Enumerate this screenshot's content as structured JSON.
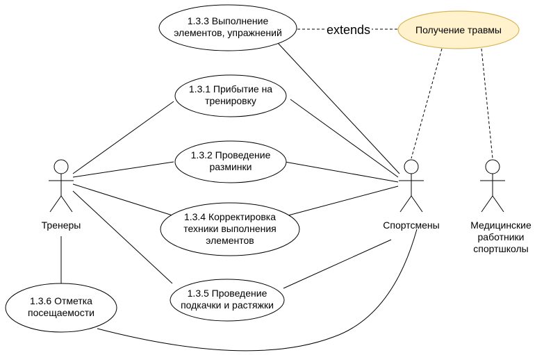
{
  "actors": {
    "trainers": {
      "label": "Тренеры"
    },
    "athletes": {
      "label": "Спортсмены"
    },
    "medics": {
      "label": "Медицинские\nработники\nспортшколы"
    }
  },
  "usecases": {
    "uc133": "1.3.3 Выполнение\nэлементов, упражнений",
    "uc131": "1.3.1 Прибытие на\nтренировку",
    "uc132": "1.3.2 Проведение\nразминки",
    "uc134": "1.3.4 Корректировка\nтехники выполнения\nэлементов",
    "uc135": "1.3.5 Проведение\nподкачки и растяжки",
    "uc136": "1.3.6 Отметка\nпосещаемости",
    "injury": "Получение травмы"
  },
  "relations": {
    "extends_label": "extends"
  },
  "colors": {
    "injury_fill": "#fff2cc",
    "injury_stroke": "#d6b656",
    "line": "#000000"
  }
}
